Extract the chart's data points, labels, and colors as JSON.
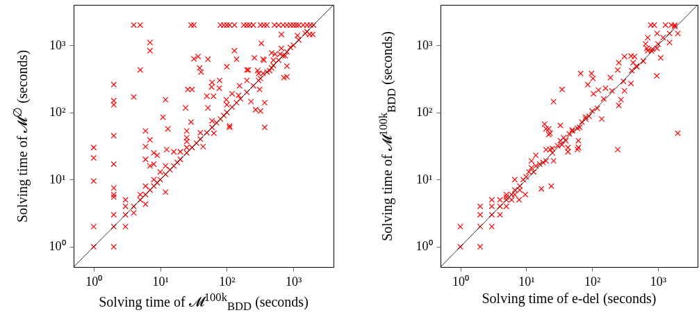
{
  "chart_data": [
    {
      "type": "scatter",
      "xlabel": "Solving time of 𝓜$^{100k}$$_{BDD}$ (seconds)",
      "ylabel": "Solving time of 𝓜$^{∅}$ (seconds)",
      "log": "xy",
      "xlim": [
        0.5,
        4000
      ],
      "ylim": [
        0.5,
        4000
      ],
      "xticks": [
        {
          "value": 1,
          "label": "10⁰"
        },
        {
          "value": 10,
          "label": "10¹"
        },
        {
          "value": 100,
          "label": "10²"
        },
        {
          "value": 1000,
          "label": "10³"
        }
      ],
      "yticks": [
        {
          "value": 1,
          "label": "10⁰"
        },
        {
          "value": 10,
          "label": "10¹"
        },
        {
          "value": 100,
          "label": "10²"
        },
        {
          "value": 1000,
          "label": "10³"
        }
      ],
      "series": [
        {
          "marker": "cross",
          "color": "#ff0000",
          "x": [
            1,
            1,
            1,
            1,
            1,
            2,
            2,
            2,
            2,
            2,
            2,
            2,
            2,
            2,
            2,
            2,
            3,
            3,
            3,
            3,
            4,
            4,
            4,
            4,
            5,
            5,
            5,
            5,
            6,
            6,
            6,
            6,
            6,
            6,
            7,
            7,
            7,
            7,
            7,
            8,
            8,
            8,
            8,
            9,
            9,
            10,
            10,
            11,
            12,
            12,
            12,
            12,
            12.5,
            13,
            14,
            16,
            16,
            18,
            20,
            20,
            24,
            25,
            25,
            25,
            25,
            25,
            26,
            29,
            29,
            30,
            30,
            32,
            32,
            35,
            37,
            39,
            40,
            40,
            41,
            44,
            50,
            50,
            52,
            52,
            59,
            60,
            60,
            60,
            63,
            64,
            70,
            77,
            78,
            80,
            80,
            90,
            90,
            98,
            100,
            100,
            100,
            100,
            110,
            110,
            110,
            120,
            120,
            130,
            130,
            140,
            140,
            155,
            160,
            150,
            180,
            200,
            200,
            200,
            200,
            210,
            220,
            230,
            250,
            250,
            260,
            270,
            290,
            300,
            300,
            310,
            320,
            320,
            320,
            330,
            350,
            350,
            360,
            360,
            370,
            370,
            400,
            400,
            440,
            470,
            470,
            500,
            500,
            520,
            530,
            600,
            600,
            630,
            660,
            660,
            700,
            700,
            720,
            750,
            800,
            800,
            800,
            800,
            900,
            900,
            1000,
            1000,
            1100,
            1150,
            1200,
            1200,
            1400,
            1500,
            1600,
            1600,
            1750,
            1800,
            1950,
            2000
          ],
          "values": [
            1,
            2,
            9.5,
            21,
            30,
            1,
            2,
            3,
            5.5,
            6,
            7.5,
            17,
            45,
            130,
            150,
            260,
            2,
            3,
            4,
            5,
            3.2,
            4,
            170,
            2000,
            2000,
            430,
            5,
            6,
            4.3,
            6,
            8,
            20,
            31,
            53,
            7,
            16,
            39,
            830,
            1100,
            8,
            10,
            17,
            25,
            9,
            23,
            10,
            13,
            85,
            6.5,
            12,
            16,
            155,
            28,
            57,
            14,
            16,
            26,
            18,
            20,
            26,
            117,
            25,
            30,
            37,
            42,
            53,
            220,
            72,
            2000,
            30,
            220,
            630,
            2000,
            35,
            680,
            460,
            40,
            50,
            400,
            31,
            50,
            175,
            117,
            620,
            240,
            60,
            75,
            280,
            175,
            49,
            70,
            230,
            300,
            80,
            2000,
            90,
            2000,
            155,
            100,
            130,
            480,
            2000,
            60,
            63,
            2000,
            120,
            190,
            830,
            2000,
            140,
            620,
            250,
            160,
            180,
            2000,
            200,
            300,
            430,
            2000,
            430,
            2000,
            145,
            250,
            2000,
            650,
            110,
            420,
            300,
            380,
            220,
            105,
            320,
            2000,
            1070,
            380,
            620,
            600,
            2000,
            60,
            140,
            400,
            2000,
            420,
            460,
            770,
            500,
            600,
            2000,
            740,
            600,
            2000,
            740,
            900,
            1450,
            700,
            2000,
            330,
            700,
            800,
            340,
            490,
            2000,
            930,
            2000,
            1000,
            2000,
            2000,
            1400,
            1200,
            2000,
            2000,
            1500,
            1600,
            2000,
            1450,
            2000,
            1450,
            2000
          ]
        },
        {
          "type": "line",
          "color": "#000000",
          "x": [
            0.5,
            4000
          ],
          "values": [
            0.5,
            4000
          ]
        }
      ]
    },
    {
      "type": "scatter",
      "xlabel": "Solving time of e-del (seconds)",
      "ylabel": "Solving time of 𝓜$^{100k}$$_{BDD}$ (seconds)",
      "log": "xy",
      "xlim": [
        0.5,
        4000
      ],
      "ylim": [
        0.5,
        4000
      ],
      "xticks": [
        {
          "value": 1,
          "label": "10⁰"
        },
        {
          "value": 10,
          "label": "10¹"
        },
        {
          "value": 100,
          "label": "10²"
        },
        {
          "value": 1000,
          "label": "10³"
        }
      ],
      "yticks": [
        {
          "value": 1,
          "label": "10⁰"
        },
        {
          "value": 10,
          "label": "10¹"
        },
        {
          "value": 100,
          "label": "10²"
        },
        {
          "value": 1000,
          "label": "10³"
        }
      ],
      "series": [
        {
          "marker": "cross",
          "color": "#ff0000",
          "x": [
            1,
            1,
            2,
            2,
            2,
            2,
            3,
            3,
            3,
            3,
            4,
            4,
            4,
            5,
            5,
            5,
            5,
            6,
            6,
            6.7,
            6.7,
            6.7,
            7.8,
            8,
            8,
            9.7,
            9,
            10,
            11,
            12,
            12,
            13,
            14,
            14,
            16,
            17,
            18,
            19,
            20,
            20,
            20,
            22,
            22,
            23,
            23,
            24,
            25,
            25,
            26,
            26,
            30,
            33,
            33,
            35,
            35,
            37,
            40,
            43,
            43,
            45,
            50,
            50,
            60,
            60,
            62,
            62,
            65,
            67,
            70,
            80,
            80,
            86,
            90,
            98,
            100,
            103,
            105,
            120,
            125,
            140,
            150,
            160,
            190,
            200,
            245,
            245,
            255,
            255,
            275,
            300,
            310,
            310,
            390,
            390,
            400,
            420,
            440,
            470,
            480,
            600,
            650,
            680,
            700,
            700,
            780,
            800,
            820,
            880,
            960,
            970,
            970,
            1000,
            1100,
            1200,
            1300,
            1500,
            1500,
            1600,
            1800,
            1800,
            2000,
            2000
          ],
          "values": [
            1,
            2,
            1,
            2,
            3,
            4,
            2,
            3,
            4,
            5,
            3,
            4,
            5,
            4,
            5,
            5.5,
            6,
            5,
            6,
            6,
            7,
            10,
            5,
            7,
            8,
            6,
            10,
            11,
            13,
            15,
            19,
            13,
            16,
            23,
            17,
            7.3,
            18,
            67,
            19,
            28,
            57,
            47,
            57,
            28,
            49,
            8,
            25,
            29,
            19,
            145,
            32,
            38,
            64,
            33,
            220,
            42,
            38,
            26,
            30,
            48,
            53,
            55,
            28,
            58,
            30,
            38,
            60,
            380,
            72,
            80,
            85,
            260,
            88,
            380,
            105,
            320,
            190,
            115,
            215,
            80,
            160,
            230,
            330,
            210,
            28,
            430,
            127,
            550,
            155,
            290,
            210,
            680,
            270,
            690,
            420,
            550,
            680,
            490,
            480,
            580,
            1050,
            900,
            830,
            1300,
            2000,
            820,
            880,
            2000,
            350,
            900,
            1500,
            1050,
            650,
            1300,
            2000,
            1100,
            1500,
            2000,
            1900,
            2000,
            49,
            1500
          ]
        },
        {
          "type": "line",
          "color": "#000000",
          "x": [
            0.5,
            4000
          ],
          "values": [
            0.5,
            4000
          ]
        }
      ]
    }
  ]
}
